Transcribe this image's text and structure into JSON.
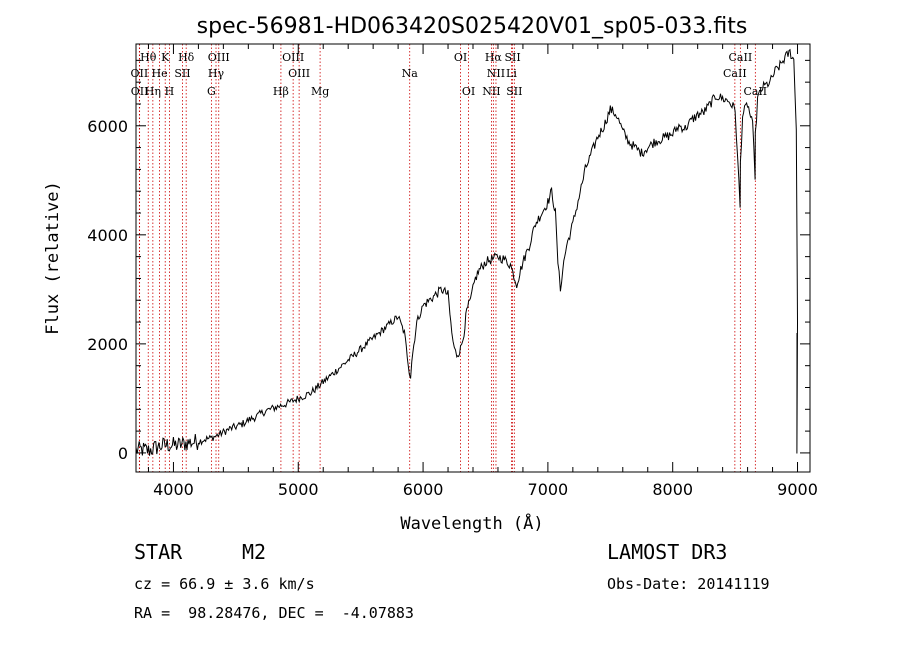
{
  "chart_data": {
    "type": "line",
    "title": "spec-56981-HD063420S025420V01_sp05-033.fits",
    "xlabel": "Wavelength (Å)",
    "ylabel": "Flux (relative)",
    "xlim": [
      3700,
      9100
    ],
    "ylim": [
      -350,
      7500
    ],
    "xticks": [
      4000,
      5000,
      6000,
      7000,
      8000,
      9000
    ],
    "yticks": [
      0,
      2000,
      4000,
      6000
    ],
    "series": [
      {
        "name": "flux",
        "x": [
          3700,
          3760,
          3800,
          3850,
          3900,
          3950,
          4000,
          4050,
          4100,
          4150,
          4200,
          4250,
          4300,
          4350,
          4400,
          4450,
          4500,
          4550,
          4600,
          4650,
          4700,
          4750,
          4800,
          4850,
          4900,
          4950,
          5000,
          5050,
          5100,
          5150,
          5200,
          5250,
          5300,
          5350,
          5400,
          5450,
          5500,
          5550,
          5600,
          5650,
          5700,
          5750,
          5800,
          5850,
          5890,
          5900,
          5910,
          5950,
          6000,
          6050,
          6100,
          6150,
          6200,
          6230,
          6250,
          6270,
          6300,
          6320,
          6350,
          6380,
          6400,
          6420,
          6450,
          6500,
          6550,
          6600,
          6650,
          6700,
          6720,
          6750,
          6800,
          6850,
          6900,
          6950,
          7000,
          7030,
          7060,
          7080,
          7100,
          7120,
          7150,
          7200,
          7250,
          7300,
          7350,
          7400,
          7450,
          7500,
          7550,
          7600,
          7650,
          7700,
          7750,
          7800,
          7850,
          7900,
          7950,
          8000,
          8050,
          8100,
          8150,
          8200,
          8250,
          8300,
          8350,
          8400,
          8450,
          8500,
          8520,
          8540,
          8542,
          8560,
          8600,
          8640,
          8660,
          8662,
          8680,
          8720,
          8780,
          8820,
          8860,
          8900,
          8940,
          8970,
          8990,
          9000
        ],
        "y": [
          50,
          60,
          40,
          90,
          130,
          150,
          140,
          150,
          180,
          200,
          210,
          250,
          270,
          320,
          380,
          440,
          480,
          530,
          600,
          650,
          720,
          780,
          820,
          860,
          900,
          950,
          1000,
          1050,
          1100,
          1200,
          1300,
          1400,
          1500,
          1600,
          1700,
          1800,
          1900,
          2000,
          2100,
          2200,
          2300,
          2400,
          2500,
          2200,
          1500,
          1400,
          1700,
          2400,
          2700,
          2800,
          2900,
          3000,
          2900,
          2200,
          1900,
          1800,
          1900,
          2100,
          2600,
          2800,
          3000,
          3200,
          3350,
          3500,
          3550,
          3600,
          3550,
          3450,
          3300,
          3100,
          3500,
          3800,
          4200,
          4400,
          4600,
          4800,
          4400,
          3500,
          3000,
          3400,
          3800,
          4200,
          4700,
          5200,
          5500,
          5800,
          6000,
          6300,
          6200,
          5900,
          5700,
          5600,
          5500,
          5600,
          5700,
          5750,
          5800,
          5850,
          6000,
          5950,
          6100,
          6200,
          6250,
          6400,
          6550,
          6500,
          6450,
          6300,
          5400,
          4500,
          5300,
          6200,
          6400,
          6000,
          5100,
          5800,
          6500,
          6700,
          6800,
          7000,
          7100,
          7250,
          7350,
          7200,
          6000,
          2400
        ]
      }
    ],
    "line_markers": [
      {
        "label": "Hθ",
        "x": 3798,
        "row": 0
      },
      {
        "label": "K",
        "x": 3934,
        "row": 0
      },
      {
        "label": "Hδ",
        "x": 4102,
        "row": 0
      },
      {
        "label": "OIII",
        "x": 4363,
        "row": 0
      },
      {
        "label": "OIII",
        "x": 4959,
        "row": 0
      },
      {
        "label": "OI",
        "x": 6300,
        "row": 0
      },
      {
        "label": "Hα",
        "x": 6563,
        "row": 0
      },
      {
        "label": "SII",
        "x": 6717,
        "row": 0
      },
      {
        "label": "CaII",
        "x": 8542,
        "row": 0
      },
      {
        "label": "OII",
        "x": 3727,
        "row": 1
      },
      {
        "label": "He",
        "x": 3889,
        "row": 1
      },
      {
        "label": "SII",
        "x": 4072,
        "row": 1
      },
      {
        "label": "Hγ",
        "x": 4341,
        "row": 1
      },
      {
        "label": "OIII",
        "x": 5007,
        "row": 1
      },
      {
        "label": "Na",
        "x": 5893,
        "row": 1
      },
      {
        "label": "NII",
        "x": 6584,
        "row": 1
      },
      {
        "label": "Li",
        "x": 6708,
        "row": 1
      },
      {
        "label": "CaII",
        "x": 8498,
        "row": 1
      },
      {
        "label": "OII",
        "x": 3729,
        "row": 2
      },
      {
        "label": "Hη",
        "x": 3835,
        "row": 2
      },
      {
        "label": "H",
        "x": 3968,
        "row": 2
      },
      {
        "label": "G",
        "x": 4304,
        "row": 2
      },
      {
        "label": "Hβ",
        "x": 4861,
        "row": 2
      },
      {
        "label": "Mg",
        "x": 5175,
        "row": 2
      },
      {
        "label": "OI",
        "x": 6364,
        "row": 2
      },
      {
        "label": "NII",
        "x": 6548,
        "row": 2
      },
      {
        "label": "SII",
        "x": 6731,
        "row": 2
      },
      {
        "label": "CaII",
        "x": 8662,
        "row": 2
      }
    ],
    "marker_color": "#cc0000",
    "line_color": "#000000"
  },
  "info": {
    "object_class": "STAR",
    "subclass": "M2",
    "survey": "LAMOST DR3",
    "redshift": "cz = 66.9 ± 3.6 km/s",
    "obs_date": "Obs-Date: 20141119",
    "coords": "RA =  98.28476, DEC =  -4.07883"
  }
}
